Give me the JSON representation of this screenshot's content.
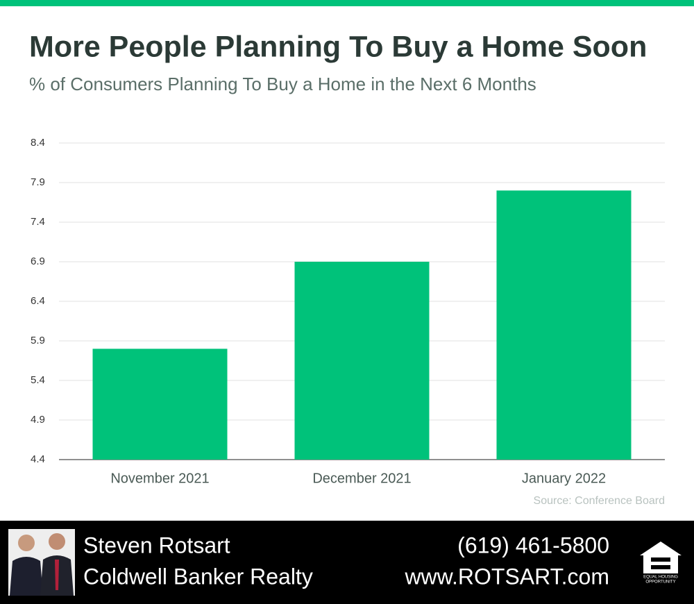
{
  "chart_data": {
    "type": "bar",
    "title": "More People Planning To Buy a Home Soon",
    "subtitle": "% of Consumers Planning To Buy a Home in the Next 6 Months",
    "source": "Source: Conference Board",
    "categories": [
      "November 2021",
      "December 2021",
      "January 2022"
    ],
    "values": [
      5.8,
      6.9,
      7.8
    ],
    "color": "#00c27a",
    "ylim": [
      4.4,
      8.4
    ],
    "yticks": [
      4.4,
      4.9,
      5.4,
      5.9,
      6.4,
      6.9,
      7.4,
      7.9,
      8.4
    ],
    "grid": true
  },
  "footer": {
    "name": "Steven Rotsart",
    "company": "Coldwell Banker Realty",
    "phone": "(619) 461-5800",
    "website": "www.ROTSART.com",
    "logo_text": [
      "EQUAL HOUSING",
      "OPPORTUNITY"
    ]
  }
}
